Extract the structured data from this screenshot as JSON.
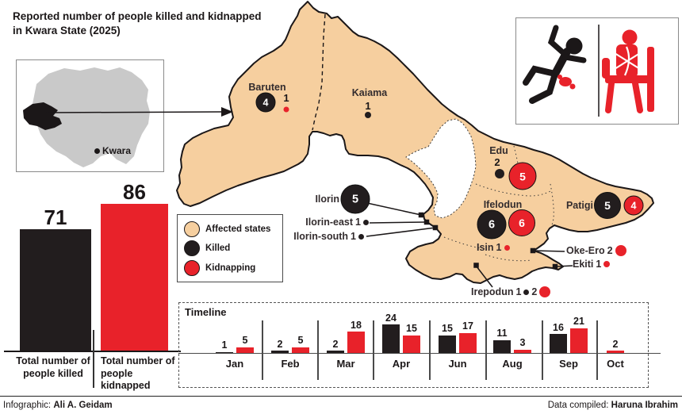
{
  "title": {
    "line1": "Reported number of people killed and kidnapped",
    "line2": "in Kwara State (2025)"
  },
  "inset_map": {
    "label": "Kwara"
  },
  "icon_box": {
    "icons": [
      "killed-person-icon",
      "kidnapped-person-icon"
    ]
  },
  "legend": {
    "items": [
      {
        "label": "Affected states",
        "color": "#F6CF9F"
      },
      {
        "label": "Killed",
        "color": "#221D1E"
      },
      {
        "label": "Kidnapping",
        "color": "#E8222A"
      }
    ]
  },
  "map": {
    "markers": [
      {
        "name": "Baruten",
        "killed": 4,
        "kidnapped": 1
      },
      {
        "name": "Kaiama",
        "killed": 1,
        "kidnapped": null
      },
      {
        "name": "Edu",
        "killed": 2,
        "kidnapped": 5
      },
      {
        "name": "Ilorin",
        "killed": 5,
        "kidnapped": null
      },
      {
        "name": "Ilorin-east",
        "killed": 1,
        "kidnapped": null
      },
      {
        "name": "Ilorin-south",
        "killed": 1,
        "kidnapped": null
      },
      {
        "name": "Ifelodun",
        "killed": 6,
        "kidnapped": 6
      },
      {
        "name": "Patigi",
        "killed": 5,
        "kidnapped": 4
      },
      {
        "name": "Isin",
        "killed": null,
        "kidnapped": 1
      },
      {
        "name": "Oke-Ero",
        "killed": null,
        "kidnapped": 2
      },
      {
        "name": "Ekiti",
        "killed": null,
        "kidnapped": 1
      },
      {
        "name": "Irepodun",
        "killed": 1,
        "kidnapped": 2
      }
    ]
  },
  "chart_data": [
    {
      "type": "bar",
      "title": "Totals",
      "categories": [
        "Total number of people killed",
        "Total number of people kidnapped"
      ],
      "values": [
        71,
        86
      ],
      "colors": [
        "#221D1E",
        "#E8222A"
      ],
      "ylim": [
        0,
        90
      ],
      "grid": false
    },
    {
      "type": "bar",
      "title": "Timeline",
      "categories": [
        "Jan",
        "Feb",
        "Mar",
        "Apr",
        "Jun",
        "Aug",
        "Sep",
        "Oct"
      ],
      "series": [
        {
          "name": "Killed",
          "color": "#221D1E",
          "values": [
            1,
            2,
            2,
            24,
            15,
            11,
            16,
            null
          ]
        },
        {
          "name": "Kidnapped",
          "color": "#E8222A",
          "values": [
            5,
            5,
            18,
            15,
            17,
            3,
            21,
            2
          ]
        }
      ],
      "ylim": [
        0,
        25
      ],
      "grid": false,
      "legend_position": "none"
    }
  ],
  "footer": {
    "left_label": "Infographic:",
    "left_name": "Ali A. Geidam",
    "right_label": "Data compiled:",
    "right_name": "Haruna Ibrahim"
  },
  "colors": {
    "affected_state": "#F6CF9F",
    "killed": "#221D1E",
    "kidnapping": "#E8222A",
    "map_outline": "#1B1718",
    "background": "#FFFFFF"
  }
}
